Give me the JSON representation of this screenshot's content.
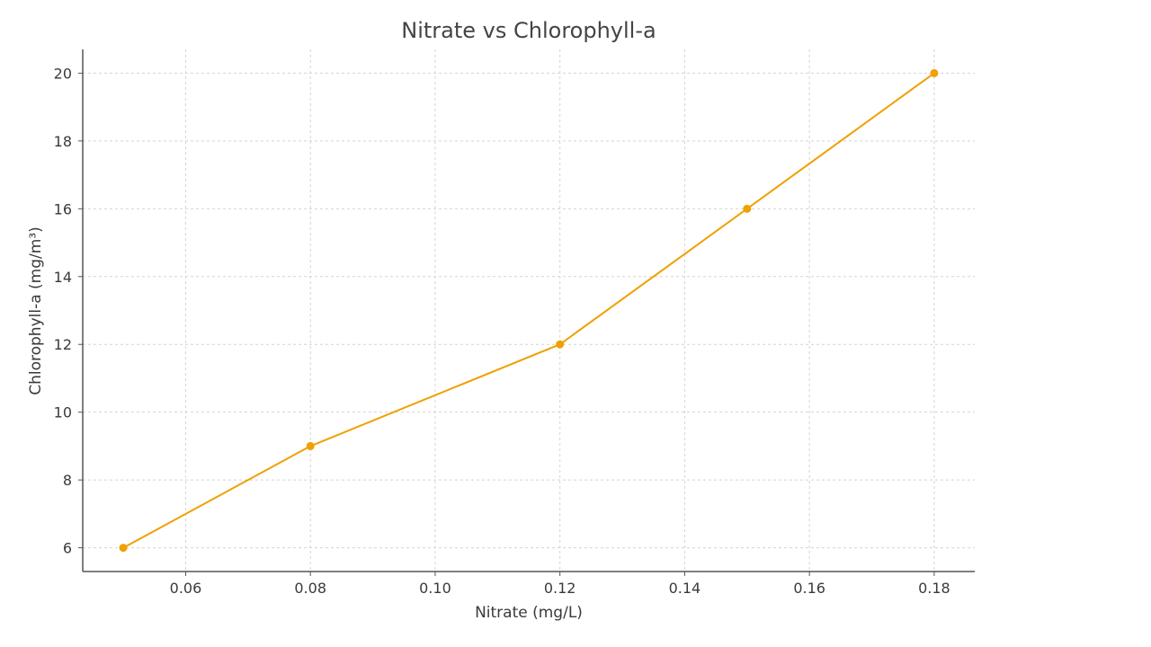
{
  "chart_data": {
    "type": "line",
    "title": "Nitrate vs Chlorophyll-a",
    "xlabel": "Nitrate (mg/L)",
    "ylabel": "Chlorophyll-a (mg/m³)",
    "x": [
      0.05,
      0.08,
      0.12,
      0.15,
      0.18
    ],
    "series": [
      {
        "values": [
          6,
          9,
          12,
          16,
          20
        ],
        "color": "#f0a000",
        "marker": "circle"
      }
    ],
    "xlim": [
      0.0435,
      0.1865
    ],
    "ylim": [
      5.3,
      20.7
    ],
    "xticks": [
      0.06,
      0.08,
      0.1,
      0.12,
      0.14,
      0.16,
      0.18
    ],
    "xtick_labels": [
      "0.06",
      "0.08",
      "0.10",
      "0.12",
      "0.14",
      "0.16",
      "0.18"
    ],
    "yticks": [
      6,
      8,
      10,
      12,
      14,
      16,
      18,
      20
    ],
    "ytick_labels": [
      "6",
      "8",
      "10",
      "12",
      "14",
      "16",
      "18",
      "20"
    ],
    "grid": true,
    "legend": false
  }
}
